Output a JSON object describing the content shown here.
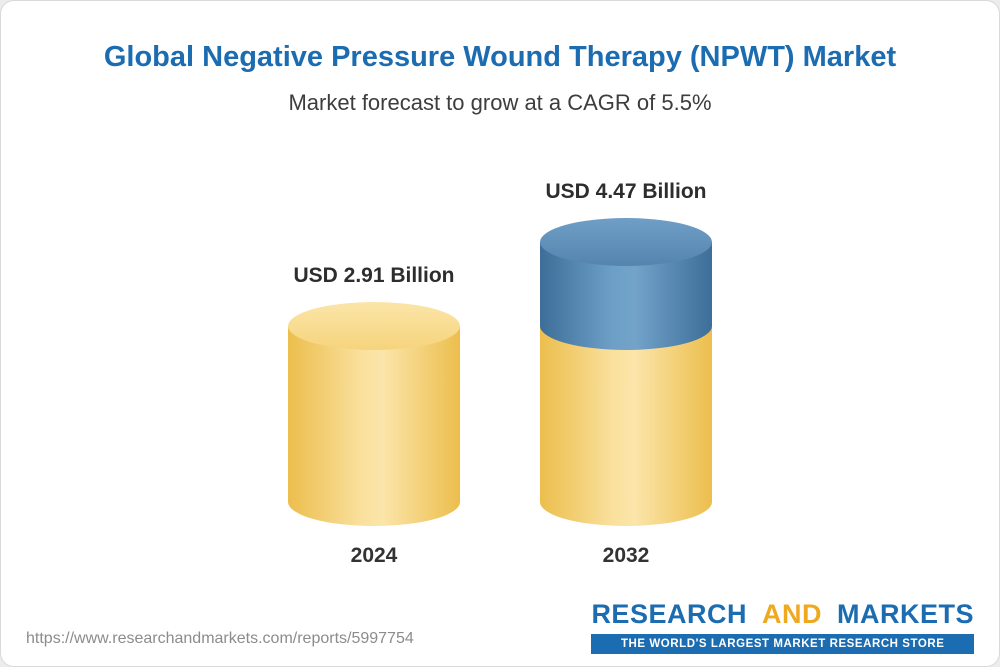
{
  "header": {
    "title": "Global Negative Pressure Wound Therapy (NPWT) Market",
    "subtitle": "Market forecast to grow at a CAGR of 5.5%"
  },
  "chart_data": {
    "type": "bar",
    "title": "Global Negative Pressure Wound Therapy (NPWT) Market",
    "subtitle": "Market forecast to grow at a CAGR of 5.5%",
    "unit": "USD Billion",
    "cagr_pct": 5.5,
    "categories": [
      "2024",
      "2032"
    ],
    "values": [
      2.91,
      4.47
    ],
    "value_labels": [
      "USD 2.91 Billion",
      "USD 4.47 Billion"
    ],
    "ylim": [
      0,
      4.47
    ],
    "grid": false,
    "legend": "none",
    "notes": "Second bar is stacked: base segment equals 2024 value (yellow), growth segment on top (blue) represents increase from 2.91 to 4.47",
    "colors": {
      "base_segment": "#F1C452",
      "growth_segment": "#5585AE"
    }
  },
  "footer": {
    "url": "https://www.researchandmarkets.com/reports/5997754",
    "logo": {
      "research": "RESEARCH",
      "and": "AND",
      "markets": "MARKETS",
      "tagline": "THE WORLD'S LARGEST MARKET RESEARCH STORE"
    }
  }
}
